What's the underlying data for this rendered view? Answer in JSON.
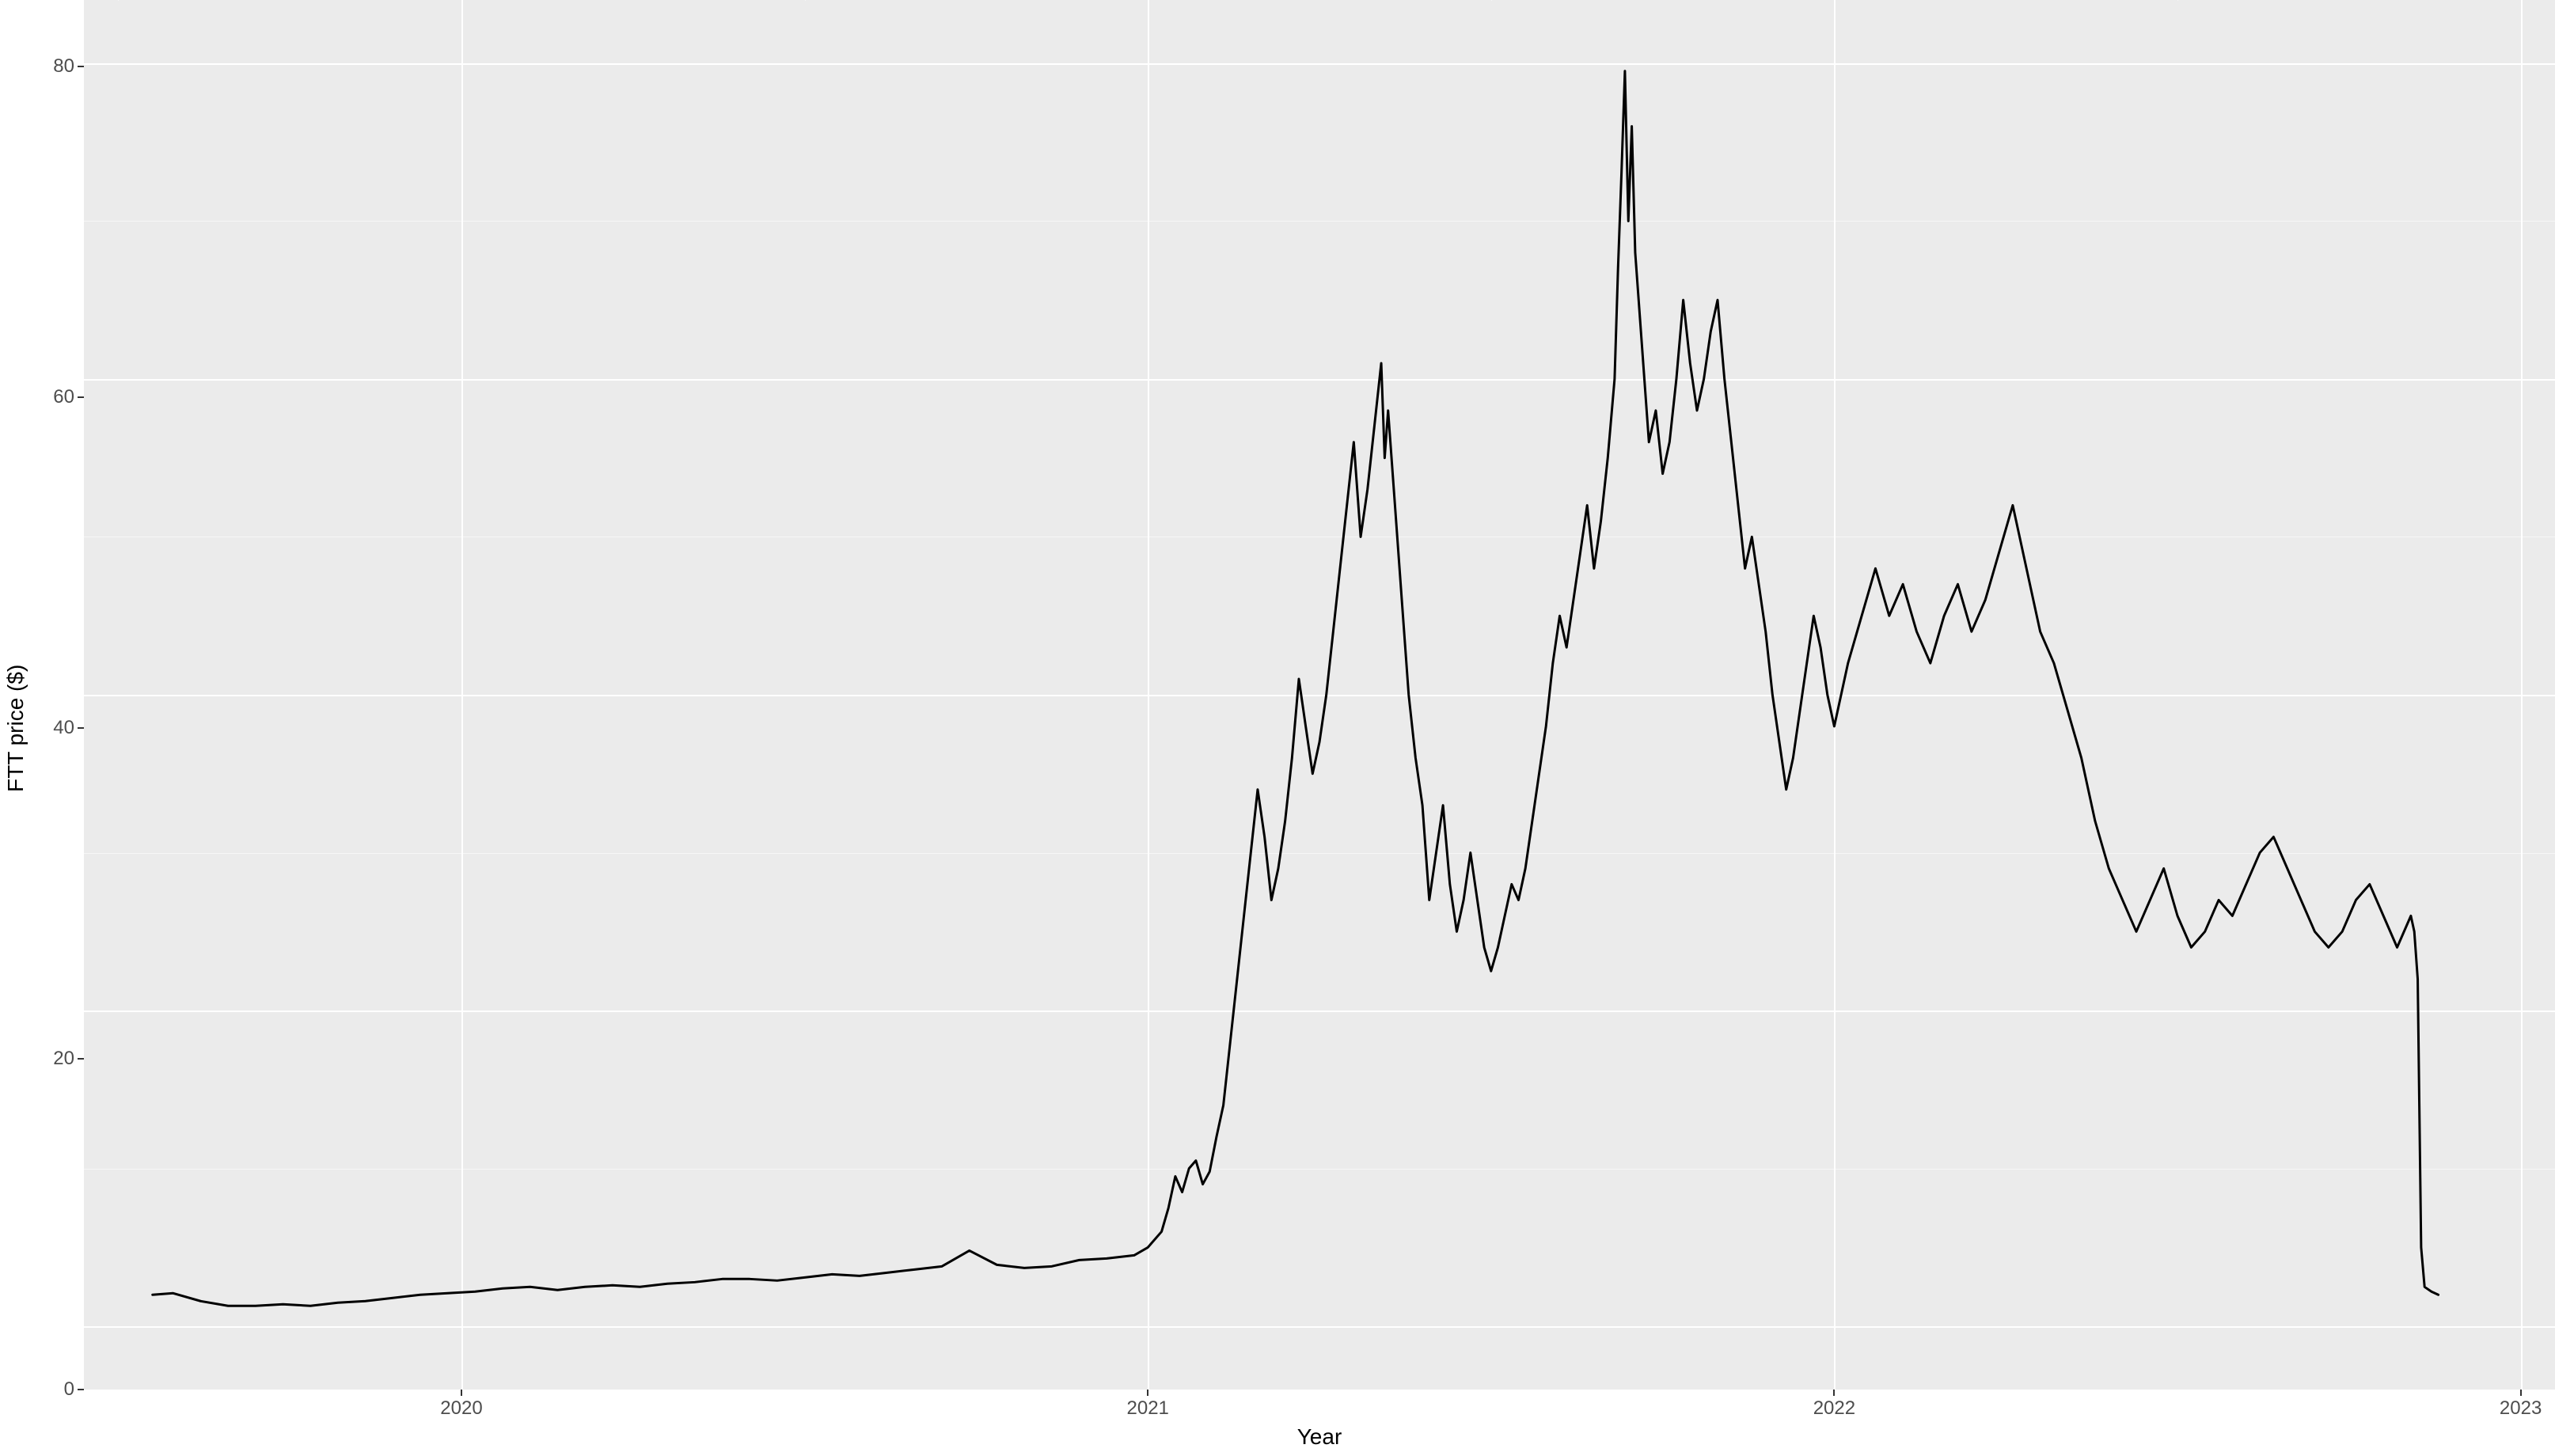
{
  "chart": {
    "type": "line",
    "xlabel": "Year",
    "ylabel": "FTT price ($)",
    "label_fontsize": 28,
    "tick_fontsize": 24,
    "background_color": "#ffffff",
    "panel_background": "#ebebeb",
    "grid_color": "#ffffff",
    "grid_major_width": 2,
    "grid_minor_width": 1,
    "line_color": "#000000",
    "line_width": 3,
    "ylim": [
      -4,
      84
    ],
    "xlim": [
      2019.45,
      2023.05
    ],
    "y_ticks": [
      0,
      20,
      40,
      60,
      80
    ],
    "y_minor_ticks": [
      10,
      30,
      50,
      70
    ],
    "x_ticks": [
      2020,
      2021,
      2022,
      2023
    ],
    "x_minor_ticks": [
      2019.5,
      2020.5,
      2021.5,
      2022.5
    ],
    "x_tick_labels": [
      "2020",
      "2021",
      "2022",
      "2023"
    ],
    "series": {
      "x": [
        2019.55,
        2019.58,
        2019.62,
        2019.66,
        2019.7,
        2019.74,
        2019.78,
        2019.82,
        2019.86,
        2019.9,
        2019.94,
        2019.98,
        2020.02,
        2020.06,
        2020.1,
        2020.14,
        2020.18,
        2020.22,
        2020.26,
        2020.3,
        2020.34,
        2020.38,
        2020.42,
        2020.46,
        2020.5,
        2020.54,
        2020.58,
        2020.62,
        2020.66,
        2020.7,
        2020.74,
        2020.78,
        2020.82,
        2020.86,
        2020.9,
        2020.94,
        2020.98,
        2021.0,
        2021.02,
        2021.03,
        2021.04,
        2021.05,
        2021.06,
        2021.07,
        2021.08,
        2021.09,
        2021.1,
        2021.11,
        2021.12,
        2021.13,
        2021.14,
        2021.15,
        2021.16,
        2021.17,
        2021.18,
        2021.19,
        2021.2,
        2021.21,
        2021.22,
        2021.23,
        2021.24,
        2021.25,
        2021.26,
        2021.27,
        2021.28,
        2021.29,
        2021.3,
        2021.31,
        2021.32,
        2021.33,
        2021.34,
        2021.345,
        2021.35,
        2021.36,
        2021.37,
        2021.38,
        2021.39,
        2021.4,
        2021.41,
        2021.42,
        2021.43,
        2021.44,
        2021.45,
        2021.46,
        2021.47,
        2021.48,
        2021.49,
        2021.5,
        2021.51,
        2021.52,
        2021.53,
        2021.54,
        2021.55,
        2021.56,
        2021.57,
        2021.58,
        2021.59,
        2021.6,
        2021.61,
        2021.62,
        2021.63,
        2021.64,
        2021.65,
        2021.66,
        2021.67,
        2021.68,
        2021.685,
        2021.69,
        2021.695,
        2021.7,
        2021.705,
        2021.71,
        2021.72,
        2021.73,
        2021.74,
        2021.75,
        2021.76,
        2021.77,
        2021.78,
        2021.79,
        2021.8,
        2021.81,
        2021.82,
        2021.83,
        2021.84,
        2021.85,
        2021.86,
        2021.87,
        2021.88,
        2021.89,
        2021.9,
        2021.91,
        2021.92,
        2021.93,
        2021.94,
        2021.95,
        2021.96,
        2021.97,
        2021.98,
        2021.99,
        2022.0,
        2022.02,
        2022.04,
        2022.06,
        2022.08,
        2022.1,
        2022.12,
        2022.14,
        2022.16,
        2022.18,
        2022.2,
        2022.22,
        2022.24,
        2022.26,
        2022.28,
        2022.3,
        2022.32,
        2022.34,
        2022.36,
        2022.38,
        2022.4,
        2022.42,
        2022.44,
        2022.46,
        2022.48,
        2022.5,
        2022.52,
        2022.54,
        2022.56,
        2022.58,
        2022.6,
        2022.62,
        2022.64,
        2022.66,
        2022.68,
        2022.7,
        2022.72,
        2022.74,
        2022.76,
        2022.78,
        2022.8,
        2022.82,
        2022.84,
        2022.845,
        2022.85,
        2022.855,
        2022.86,
        2022.87,
        2022.88
      ],
      "y": [
        2.0,
        2.1,
        1.6,
        1.3,
        1.3,
        1.4,
        1.3,
        1.5,
        1.6,
        1.8,
        2.0,
        2.1,
        2.2,
        2.4,
        2.5,
        2.3,
        2.5,
        2.6,
        2.5,
        2.7,
        2.8,
        3.0,
        3.0,
        2.9,
        3.1,
        3.3,
        3.2,
        3.4,
        3.6,
        3.8,
        4.8,
        3.9,
        3.7,
        3.8,
        4.2,
        4.3,
        4.5,
        5.0,
        6.0,
        7.5,
        9.5,
        8.5,
        10.0,
        10.5,
        9.0,
        9.8,
        12.0,
        14.0,
        18.0,
        22.0,
        26.0,
        30.0,
        34.0,
        31.0,
        27.0,
        29.0,
        32.0,
        36.0,
        41.0,
        38.0,
        35.0,
        37.0,
        40.0,
        44.0,
        48.0,
        52.0,
        56.0,
        50.0,
        53.0,
        57.0,
        61.0,
        55.0,
        58.0,
        52.0,
        46.0,
        40.0,
        36.0,
        33.0,
        27.0,
        30.0,
        33.0,
        28.0,
        25.0,
        27.0,
        30.0,
        27.0,
        24.0,
        22.5,
        24.0,
        26.0,
        28.0,
        27.0,
        29.0,
        32.0,
        35.0,
        38.0,
        42.0,
        45.0,
        43.0,
        46.0,
        49.0,
        52.0,
        48.0,
        51.0,
        55.0,
        60.0,
        67.0,
        73.0,
        79.5,
        70.0,
        76.0,
        68.0,
        62.0,
        56.0,
        58.0,
        54.0,
        56.0,
        60.0,
        65.0,
        61.0,
        58.0,
        60.0,
        63.0,
        65.0,
        60.0,
        56.0,
        52.0,
        48.0,
        50.0,
        47.0,
        44.0,
        40.0,
        37.0,
        34.0,
        36.0,
        39.0,
        42.0,
        45.0,
        43.0,
        40.0,
        38.0,
        42.0,
        45.0,
        48.0,
        45.0,
        47.0,
        44.0,
        42.0,
        45.0,
        47.0,
        44.0,
        46.0,
        49.0,
        52.0,
        48.0,
        44.0,
        42.0,
        39.0,
        36.0,
        32.0,
        29.0,
        27.0,
        25.0,
        27.0,
        29.0,
        26.0,
        24.0,
        25.0,
        27.0,
        26.0,
        28.0,
        30.0,
        31.0,
        29.0,
        27.0,
        25.0,
        24.0,
        25.0,
        27.0,
        28.0,
        26.0,
        24.0,
        26.0,
        25.0,
        22.0,
        5.0,
        2.5,
        2.2,
        2.0
      ]
    }
  }
}
